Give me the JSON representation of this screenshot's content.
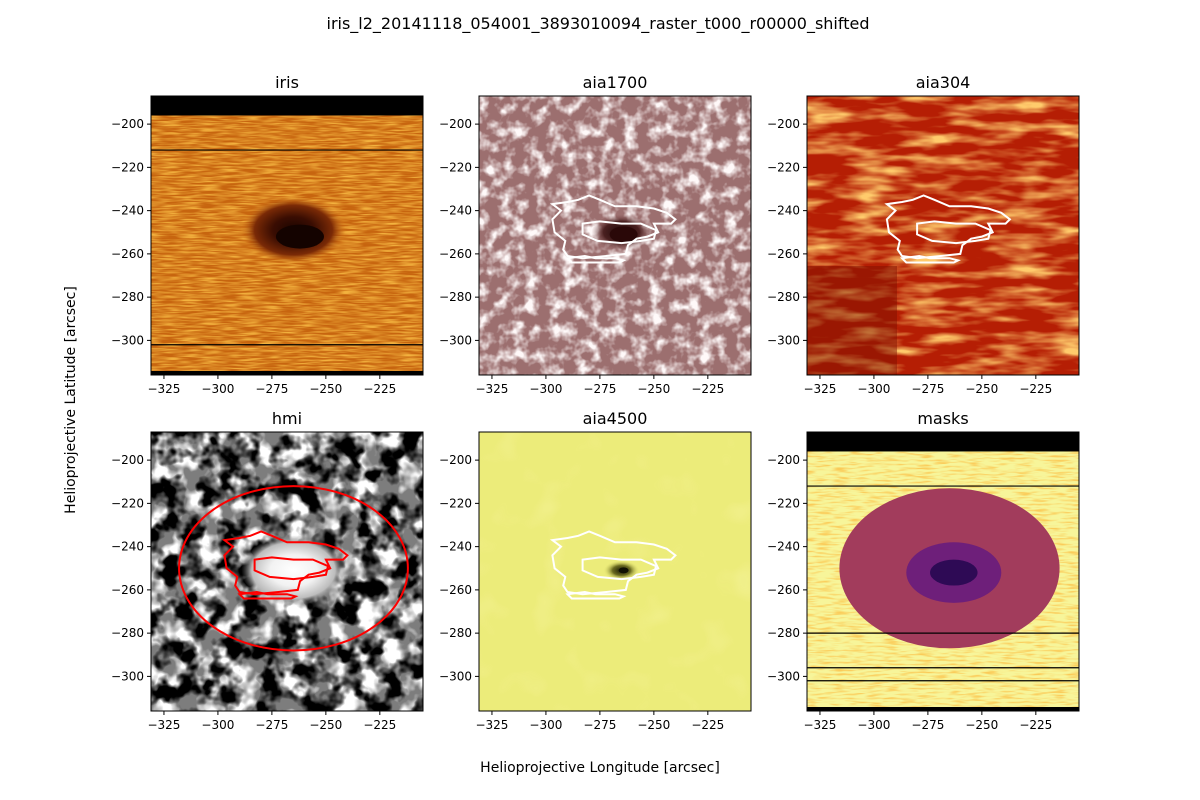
{
  "figure": {
    "title": "iris_l2_20141118_054001_3893010094_raster_t000_r00000_shifted",
    "xlabel": "Helioprojective Longitude [arcsec]",
    "ylabel": "Helioprojective Latitude [arcsec]"
  },
  "chart_data": [
    {
      "type": "heatmap",
      "title": "iris",
      "colormap": "orange",
      "xlim": [
        -331,
        -205
      ],
      "ylim": [
        -316,
        -187
      ],
      "xticks": [
        -325,
        -300,
        -275,
        -250,
        -225
      ],
      "yticks": [
        -200,
        -220,
        -240,
        -260,
        -280,
        -300
      ],
      "spot_center": [
        -265,
        -251
      ],
      "masked_top_band_above": -196,
      "lines_at_y": [
        -212,
        -302
      ],
      "contours": []
    },
    {
      "type": "heatmap",
      "title": "aia1700",
      "colormap": "pink-brown",
      "xlim": [
        -331,
        -205
      ],
      "ylim": [
        -316,
        -187
      ],
      "xticks": [
        -325,
        -300,
        -275,
        -250,
        -225
      ],
      "yticks": [
        -200,
        -220,
        -240,
        -260,
        -280,
        -300
      ],
      "spot_center": [
        -265,
        -251
      ],
      "contour_color": "#ffffff"
    },
    {
      "type": "heatmap",
      "title": "aia304",
      "colormap": "red-orange",
      "xlim": [
        -331,
        -205
      ],
      "ylim": [
        -316,
        -187
      ],
      "xticks": [
        -325,
        -300,
        -275,
        -250,
        -225
      ],
      "yticks": [
        -200,
        -220,
        -240,
        -260,
        -280,
        -300
      ],
      "contour_color": "#ffffff"
    },
    {
      "type": "heatmap",
      "title": "hmi",
      "colormap": "gray",
      "xlim": [
        -331,
        -205
      ],
      "ylim": [
        -316,
        -187
      ],
      "xticks": [
        -325,
        -300,
        -275,
        -250,
        -225
      ],
      "yticks": [
        -200,
        -220,
        -240,
        -260,
        -280,
        -300
      ],
      "spot_center": [
        -265,
        -251
      ],
      "contour_color": "#ff0000",
      "circle_center": [
        -265,
        -250
      ],
      "circle_radius_x": 53,
      "circle_radius_y": 38
    },
    {
      "type": "heatmap",
      "title": "aia4500",
      "colormap": "yellow",
      "xlim": [
        -331,
        -205
      ],
      "ylim": [
        -316,
        -187
      ],
      "xticks": [
        -325,
        -300,
        -275,
        -250,
        -225
      ],
      "yticks": [
        -200,
        -220,
        -240,
        -260,
        -280,
        -300
      ],
      "spot_center": [
        -265,
        -251
      ],
      "contour_color": "#ffffff"
    },
    {
      "type": "heatmap",
      "title": "masks",
      "colormap": "inferno",
      "xlim": [
        -331,
        -205
      ],
      "ylim": [
        -316,
        -187
      ],
      "xticks": [
        -325,
        -300,
        -275,
        -250,
        -225
      ],
      "yticks": [
        -200,
        -220,
        -240,
        -260,
        -280,
        -300
      ],
      "masked_top_band_above": -196,
      "lines_at_y": [
        -212,
        -280,
        -296,
        -302
      ],
      "regions": [
        {
          "label": "penumbra-ring",
          "center": [
            -265,
            -250
          ],
          "rx": 51,
          "ry": 37,
          "color": "#a23c5c"
        },
        {
          "label": "inner",
          "center": [
            -263,
            -252
          ],
          "rx": 22,
          "ry": 14,
          "color": "#6e1f7a"
        },
        {
          "label": "umbra",
          "center": [
            -263,
            -252
          ],
          "rx": 11,
          "ry": 6,
          "color": "#2e0a55"
        }
      ]
    }
  ]
}
